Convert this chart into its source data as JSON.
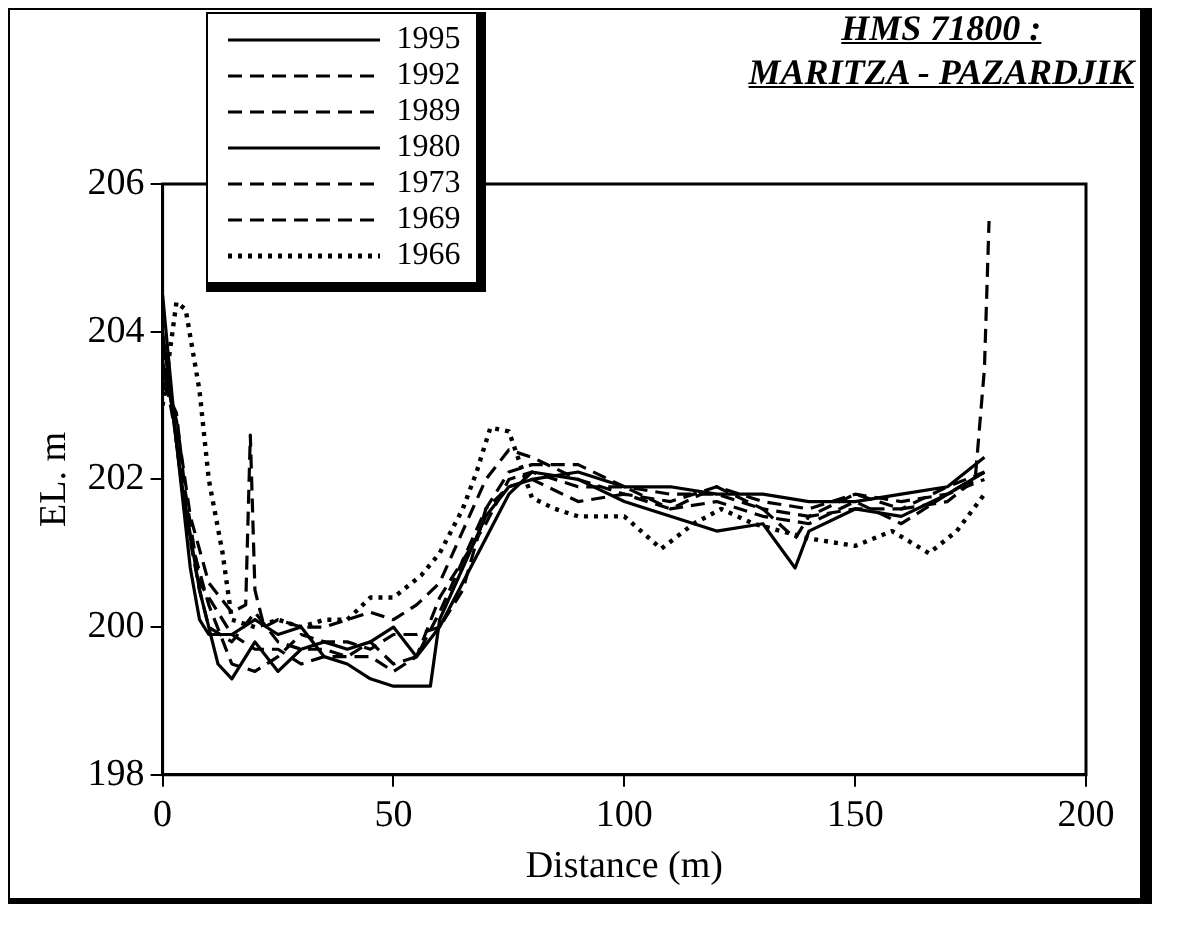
{
  "chart_data": {
    "type": "line",
    "title": "HMS 71800 :",
    "subtitle": "MARITZA - PAZARDJIK",
    "xlabel": "Distance (m)",
    "ylabel": "EL. m",
    "xlim": [
      0,
      200
    ],
    "xticks": [
      0,
      50,
      100,
      150,
      200
    ],
    "ylim": [
      198,
      206
    ],
    "yticks": [
      198,
      200,
      202,
      204,
      206
    ],
    "grid": false,
    "legend": "top left",
    "marker": "none",
    "series": [
      {
        "name": "1995",
        "color": "#000000",
        "line_style": "solid",
        "x": [
          0,
          3,
          6,
          8,
          10,
          15,
          20,
          25,
          30,
          35,
          40,
          45,
          50,
          55,
          58,
          60,
          65,
          70,
          75,
          80,
          90,
          100,
          110,
          120,
          130,
          140,
          150,
          160,
          170,
          178
        ],
        "values": [
          204.5,
          202.5,
          200.8,
          200.1,
          199.9,
          199.9,
          200.1,
          199.9,
          200.0,
          199.6,
          199.5,
          199.3,
          199.2,
          199.2,
          199.2,
          200.1,
          200.8,
          201.5,
          201.9,
          202.0,
          202.1,
          201.9,
          201.9,
          201.8,
          201.8,
          201.7,
          201.7,
          201.8,
          201.9,
          202.3
        ]
      },
      {
        "name": "1992",
        "color": "#000000",
        "line_style": "dashed",
        "x": [
          0,
          2,
          5,
          8,
          10,
          15,
          20,
          25,
          30,
          35,
          40,
          45,
          50,
          55,
          60,
          65,
          70,
          75,
          80,
          90,
          100,
          110,
          120,
          130,
          137,
          140,
          150,
          160,
          170,
          178
        ],
        "values": [
          203.8,
          203.0,
          201.5,
          200.5,
          200.0,
          199.8,
          200.2,
          199.8,
          199.7,
          199.7,
          199.6,
          199.8,
          199.5,
          199.6,
          200.2,
          200.9,
          201.6,
          202.1,
          202.2,
          202.2,
          201.9,
          201.8,
          201.8,
          201.6,
          201.2,
          201.5,
          201.6,
          201.6,
          201.9,
          202.1
        ]
      },
      {
        "name": "1989",
        "color": "#000000",
        "line_style": "dashed",
        "x": [
          0,
          3,
          6,
          10,
          15,
          18,
          19,
          20,
          22,
          25,
          30,
          35,
          40,
          45,
          50,
          55,
          60,
          65,
          70,
          75,
          80,
          90,
          100,
          110,
          120,
          130,
          140,
          150,
          160,
          170,
          178
        ],
        "values": [
          203.5,
          202.8,
          201.5,
          200.6,
          200.2,
          200.3,
          202.6,
          200.5,
          200.0,
          200.1,
          200.0,
          200.0,
          200.1,
          200.2,
          200.1,
          200.3,
          200.6,
          201.3,
          202.0,
          202.4,
          202.3,
          202.0,
          201.8,
          201.7,
          201.9,
          201.7,
          201.6,
          201.8,
          201.7,
          201.8,
          202.0
        ]
      },
      {
        "name": "1980",
        "color": "#000000",
        "line_style": "solid",
        "x": [
          0,
          4,
          8,
          12,
          15,
          20,
          25,
          30,
          35,
          40,
          45,
          50,
          55,
          60,
          65,
          70,
          75,
          80,
          90,
          100,
          110,
          120,
          130,
          137,
          140,
          150,
          160,
          170,
          178
        ],
        "values": [
          204.0,
          202.0,
          200.5,
          199.5,
          199.3,
          199.8,
          199.4,
          199.7,
          199.8,
          199.7,
          199.8,
          200.0,
          199.6,
          200.0,
          200.6,
          201.2,
          201.8,
          202.1,
          202.0,
          201.7,
          201.5,
          201.3,
          201.4,
          200.8,
          201.3,
          201.6,
          201.5,
          201.8,
          202.1
        ]
      },
      {
        "name": "1973",
        "color": "#000000",
        "line_style": "dashed",
        "x": [
          0,
          3,
          6,
          10,
          15,
          20,
          25,
          30,
          35,
          40,
          45,
          50,
          55,
          60,
          65,
          70,
          75,
          80,
          90,
          100,
          110,
          120,
          130,
          140,
          150,
          160,
          170,
          176,
          178,
          179
        ],
        "values": [
          203.3,
          202.9,
          201.2,
          200.3,
          199.5,
          199.4,
          199.6,
          199.9,
          199.8,
          199.8,
          199.7,
          199.9,
          199.9,
          200.0,
          200.5,
          201.6,
          201.9,
          202.0,
          201.7,
          201.8,
          201.6,
          201.9,
          201.6,
          201.5,
          201.8,
          201.6,
          201.7,
          202.0,
          203.5,
          205.5
        ]
      },
      {
        "name": "1969",
        "color": "#000000",
        "line_style": "dashed",
        "x": [
          0,
          4,
          8,
          12,
          15,
          20,
          25,
          30,
          35,
          40,
          45,
          50,
          55,
          60,
          65,
          70,
          75,
          80,
          90,
          100,
          110,
          120,
          130,
          140,
          150,
          160,
          170,
          178
        ],
        "values": [
          203.6,
          202.2,
          200.6,
          200.2,
          199.9,
          199.7,
          199.7,
          199.5,
          199.6,
          199.6,
          199.6,
          199.4,
          199.6,
          200.4,
          200.9,
          201.4,
          202.0,
          202.1,
          201.9,
          201.9,
          201.6,
          201.7,
          201.5,
          201.4,
          201.7,
          201.4,
          201.8,
          202.1
        ]
      },
      {
        "name": "1966",
        "color": "#000000",
        "line_style": "dotted",
        "x": [
          0,
          3,
          5,
          8,
          10,
          13,
          15,
          20,
          25,
          30,
          35,
          40,
          45,
          50,
          53,
          56,
          60,
          65,
          68,
          71,
          75,
          80,
          85,
          90,
          100,
          108,
          115,
          121,
          128,
          134,
          140,
          150,
          158,
          166,
          172,
          178
        ],
        "values": [
          203.0,
          204.4,
          204.3,
          203.2,
          202.0,
          201.0,
          200.1,
          200.0,
          200.1,
          200.0,
          200.1,
          200.1,
          200.4,
          200.4,
          200.55,
          200.7,
          201.0,
          201.6,
          202.1,
          202.7,
          202.65,
          201.75,
          201.6,
          201.5,
          201.5,
          201.06,
          201.4,
          201.6,
          201.4,
          201.3,
          201.2,
          201.1,
          201.3,
          201.0,
          201.3,
          201.8
        ]
      }
    ]
  }
}
